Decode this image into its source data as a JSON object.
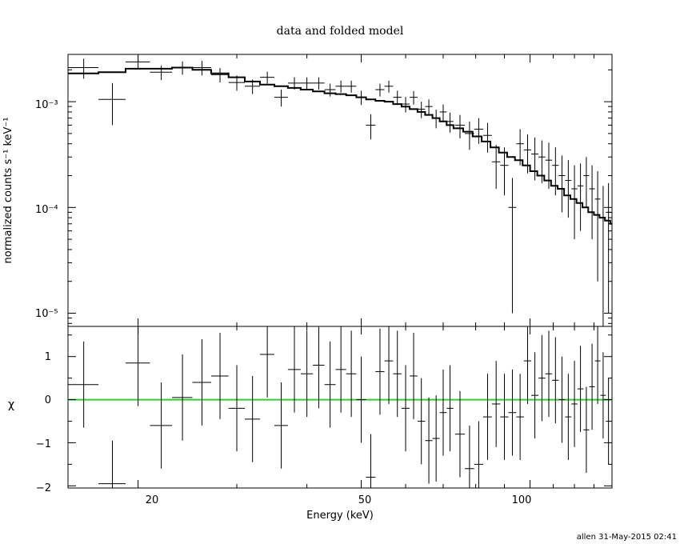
{
  "chart_data": [
    {
      "type": "scatter",
      "title": "data and folded model",
      "ylabel": "normalized counts s⁻¹ keV⁻¹",
      "xscale": "log",
      "yscale": "log",
      "xlim": [
        15,
        140
      ],
      "ylim": [
        7.5e-06,
        0.0028
      ],
      "ytick_labels": [
        "10⁻³",
        "10⁻⁴",
        "10⁻⁵"
      ],
      "data": [
        {
          "x": 16,
          "xerr": 1,
          "y": 0.0021,
          "yerr": 0.00045
        },
        {
          "x": 18,
          "xerr": 1,
          "y": 0.00105,
          "yerr": 0.00045
        },
        {
          "x": 20,
          "xerr": 1,
          "y": 0.00238,
          "yerr": 0.00035
        },
        {
          "x": 22,
          "xerr": 1,
          "y": 0.0019,
          "yerr": 0.0003
        },
        {
          "x": 24,
          "xerr": 1,
          "y": 0.0021,
          "yerr": 0.0003
        },
        {
          "x": 26,
          "xerr": 1,
          "y": 0.0021,
          "yerr": 0.00033
        },
        {
          "x": 28,
          "xerr": 1,
          "y": 0.0018,
          "yerr": 0.00028
        },
        {
          "x": 30,
          "xerr": 1,
          "y": 0.00152,
          "yerr": 0.00025
        },
        {
          "x": 32,
          "xerr": 1,
          "y": 0.0014,
          "yerr": 0.00022
        },
        {
          "x": 34,
          "xerr": 1,
          "y": 0.0017,
          "yerr": 0.00022
        },
        {
          "x": 36,
          "xerr": 1,
          "y": 0.0011,
          "yerr": 0.0002
        },
        {
          "x": 38,
          "xerr": 1,
          "y": 0.0015,
          "yerr": 0.0002
        },
        {
          "x": 40,
          "xerr": 1,
          "y": 0.0015,
          "yerr": 0.0002
        },
        {
          "x": 42,
          "xerr": 1,
          "y": 0.0015,
          "yerr": 0.0002
        },
        {
          "x": 44,
          "xerr": 1,
          "y": 0.0013,
          "yerr": 0.00018
        },
        {
          "x": 46,
          "xerr": 1,
          "y": 0.0014,
          "yerr": 0.00018
        },
        {
          "x": 48,
          "xerr": 1,
          "y": 0.0014,
          "yerr": 0.00018
        },
        {
          "x": 50,
          "xerr": 1,
          "y": 0.0011,
          "yerr": 0.00017
        },
        {
          "x": 52,
          "xerr": 1,
          "y": 0.0006,
          "yerr": 0.00016
        },
        {
          "x": 54,
          "xerr": 1,
          "y": 0.0013,
          "yerr": 0.00018
        },
        {
          "x": 56,
          "xerr": 1,
          "y": 0.0014,
          "yerr": 0.00018
        },
        {
          "x": 58,
          "xerr": 1,
          "y": 0.0011,
          "yerr": 0.00017
        },
        {
          "x": 60,
          "xerr": 1,
          "y": 0.00095,
          "yerr": 0.00016
        },
        {
          "x": 62,
          "xerr": 1,
          "y": 0.0011,
          "yerr": 0.00016
        },
        {
          "x": 64,
          "xerr": 1,
          "y": 0.00085,
          "yerr": 0.00015
        },
        {
          "x": 66,
          "xerr": 1,
          "y": 0.0009,
          "yerr": 0.00015
        },
        {
          "x": 68,
          "xerr": 1,
          "y": 0.0007,
          "yerr": 0.00014
        },
        {
          "x": 70,
          "xerr": 1,
          "y": 0.0008,
          "yerr": 0.00014
        },
        {
          "x": 72,
          "xerr": 1,
          "y": 0.00065,
          "yerr": 0.00014
        },
        {
          "x": 75,
          "xerr": 1.5,
          "y": 0.0006,
          "yerr": 0.00015
        },
        {
          "x": 78,
          "xerr": 1.5,
          "y": 0.0005,
          "yerr": 0.00015
        },
        {
          "x": 81,
          "xerr": 1.5,
          "y": 0.00055,
          "yerr": 0.00015
        },
        {
          "x": 84,
          "xerr": 1.5,
          "y": 0.00048,
          "yerr": 0.00015
        },
        {
          "x": 87,
          "xerr": 1.5,
          "y": 0.00027,
          "yerr": 0.00012
        },
        {
          "x": 90,
          "xerr": 1.5,
          "y": 0.00025,
          "yerr": 0.00012
        },
        {
          "x": 93,
          "xerr": 1.5,
          "y": 0.0001,
          "yerr": 9e-05
        },
        {
          "x": 96,
          "xerr": 1.5,
          "y": 0.0004,
          "yerr": 0.00015
        },
        {
          "x": 99,
          "xerr": 1.5,
          "y": 0.00035,
          "yerr": 0.00014
        },
        {
          "x": 102,
          "xerr": 1.5,
          "y": 0.00032,
          "yerr": 0.00014
        },
        {
          "x": 105,
          "xerr": 1.5,
          "y": 0.0003,
          "yerr": 0.00013
        },
        {
          "x": 108,
          "xerr": 1.5,
          "y": 0.00028,
          "yerr": 0.00013
        },
        {
          "x": 111,
          "xerr": 1.5,
          "y": 0.00025,
          "yerr": 0.00012
        },
        {
          "x": 114,
          "xerr": 1.5,
          "y": 0.0002,
          "yerr": 0.00011
        },
        {
          "x": 117,
          "xerr": 1.5,
          "y": 0.00018,
          "yerr": 0.0001
        },
        {
          "x": 120,
          "xerr": 1.5,
          "y": 0.00015,
          "yerr": 0.0001
        },
        {
          "x": 123,
          "xerr": 1.5,
          "y": 0.00016,
          "yerr": 0.0001
        },
        {
          "x": 126,
          "xerr": 1.5,
          "y": 0.0002,
          "yerr": 0.0001
        },
        {
          "x": 129,
          "xerr": 1.5,
          "y": 0.00015,
          "yerr": 0.0001
        },
        {
          "x": 132,
          "xerr": 1.5,
          "y": 0.00012,
          "yerr": 0.0001
        },
        {
          "x": 135,
          "xerr": 1.5,
          "y": 8e-05,
          "yerr": 8e-05
        },
        {
          "x": 138,
          "xerr": 1.5,
          "y": 9e-05,
          "yerr": 8e-05
        }
      ],
      "model": {
        "x": [
          15,
          17,
          19,
          21,
          23,
          25,
          27,
          29,
          31,
          33,
          35,
          37,
          39,
          41,
          43,
          45,
          47,
          49,
          51,
          53,
          55,
          57,
          59,
          61,
          63,
          65,
          67,
          69,
          71,
          73,
          76,
          79,
          82,
          85,
          88,
          91,
          94,
          97,
          100,
          103,
          106,
          109,
          112,
          115,
          118,
          121,
          124,
          127,
          130,
          133,
          136,
          139
        ],
        "y": [
          0.00185,
          0.0019,
          0.00205,
          0.00205,
          0.0021,
          0.002,
          0.00185,
          0.0017,
          0.00155,
          0.00145,
          0.0014,
          0.00135,
          0.0013,
          0.00125,
          0.0012,
          0.00118,
          0.00115,
          0.0011,
          0.00105,
          0.00102,
          0.001,
          0.00095,
          0.0009,
          0.00085,
          0.0008,
          0.00075,
          0.0007,
          0.00065,
          0.0006,
          0.00056,
          0.00052,
          0.00047,
          0.00042,
          0.00037,
          0.00033,
          0.0003,
          0.00028,
          0.00025,
          0.00022,
          0.0002,
          0.00018,
          0.00016,
          0.00015,
          0.00013,
          0.00012,
          0.00011,
          0.0001,
          9e-05,
          8.5e-05,
          8e-05,
          7.5e-05,
          7e-05
        ]
      }
    },
    {
      "type": "scatter",
      "xlabel": "Energy (keV)",
      "ylabel": "χ",
      "xscale": "log",
      "xlim": [
        15,
        140
      ],
      "ylim": [
        -2.05,
        1.7
      ],
      "xtick_labels": [
        "20",
        "50",
        "100"
      ],
      "ytick_labels": [
        "1",
        "0",
        "−1",
        "−2"
      ],
      "reference_line": {
        "y": 0,
        "color": "#33cc33"
      },
      "data": [
        {
          "x": 16,
          "xerr": 1,
          "y": 0.35
        },
        {
          "x": 18,
          "xerr": 1,
          "y": -1.95
        },
        {
          "x": 20,
          "xerr": 1,
          "y": 0.85
        },
        {
          "x": 22,
          "xerr": 1,
          "y": -0.6
        },
        {
          "x": 24,
          "xerr": 1,
          "y": 0.05
        },
        {
          "x": 26,
          "xerr": 1,
          "y": 0.4
        },
        {
          "x": 28,
          "xerr": 1,
          "y": 0.55
        },
        {
          "x": 30,
          "xerr": 1,
          "y": -0.2
        },
        {
          "x": 32,
          "xerr": 1,
          "y": -0.45
        },
        {
          "x": 34,
          "xerr": 1,
          "y": 1.05
        },
        {
          "x": 36,
          "xerr": 1,
          "y": -0.6
        },
        {
          "x": 38,
          "xerr": 1,
          "y": 0.7
        },
        {
          "x": 40,
          "xerr": 1,
          "y": 0.6
        },
        {
          "x": 42,
          "xerr": 1,
          "y": 0.8
        },
        {
          "x": 44,
          "xerr": 1,
          "y": 0.35
        },
        {
          "x": 46,
          "xerr": 1,
          "y": 0.7
        },
        {
          "x": 48,
          "xerr": 1,
          "y": 0.6
        },
        {
          "x": 50,
          "xerr": 1,
          "y": 0
        },
        {
          "x": 52,
          "xerr": 1,
          "y": -1.8
        },
        {
          "x": 54,
          "xerr": 1,
          "y": 0.65
        },
        {
          "x": 56,
          "xerr": 1,
          "y": 0.9
        },
        {
          "x": 58,
          "xerr": 1,
          "y": 0.6
        },
        {
          "x": 60,
          "xerr": 1,
          "y": -0.2
        },
        {
          "x": 62,
          "xerr": 1,
          "y": 0.55
        },
        {
          "x": 64,
          "xerr": 1,
          "y": -0.5
        },
        {
          "x": 66,
          "xerr": 1,
          "y": -0.95
        },
        {
          "x": 68,
          "xerr": 1,
          "y": -0.9
        },
        {
          "x": 70,
          "xerr": 1,
          "y": -0.3
        },
        {
          "x": 72,
          "xerr": 1,
          "y": -0.2
        },
        {
          "x": 75,
          "xerr": 1.5,
          "y": -0.8
        },
        {
          "x": 78,
          "xerr": 1.5,
          "y": -1.6
        },
        {
          "x": 81,
          "xerr": 1.5,
          "y": -1.5
        },
        {
          "x": 84,
          "xerr": 1.5,
          "y": -0.4
        },
        {
          "x": 87,
          "xerr": 1.5,
          "y": -0.1
        },
        {
          "x": 90,
          "xerr": 1.5,
          "y": -0.4
        },
        {
          "x": 93,
          "xerr": 1.5,
          "y": -0.3
        },
        {
          "x": 96,
          "xerr": 1.5,
          "y": -0.4
        },
        {
          "x": 99,
          "xerr": 1.5,
          "y": 0.9
        },
        {
          "x": 102,
          "xerr": 1.5,
          "y": 0.1
        },
        {
          "x": 105,
          "xerr": 1.5,
          "y": 0.5
        },
        {
          "x": 108,
          "xerr": 1.5,
          "y": 0.6
        },
        {
          "x": 111,
          "xerr": 1.5,
          "y": 0.45
        },
        {
          "x": 114,
          "xerr": 1.5,
          "y": 0
        },
        {
          "x": 117,
          "xerr": 1.5,
          "y": -0.4
        },
        {
          "x": 120,
          "xerr": 1.5,
          "y": -0.1
        },
        {
          "x": 123,
          "xerr": 1.5,
          "y": 0.25
        },
        {
          "x": 126,
          "xerr": 1.5,
          "y": -0.7
        },
        {
          "x": 129,
          "xerr": 1.5,
          "y": 0.3
        },
        {
          "x": 132,
          "xerr": 1.5,
          "y": 0.9
        },
        {
          "x": 135,
          "xerr": 1.5,
          "y": 0.1
        },
        {
          "x": 138,
          "xerr": 1.5,
          "y": -0.5
        }
      ]
    }
  ],
  "footer": {
    "stamp": "allen 31-May-2015 02:41"
  }
}
